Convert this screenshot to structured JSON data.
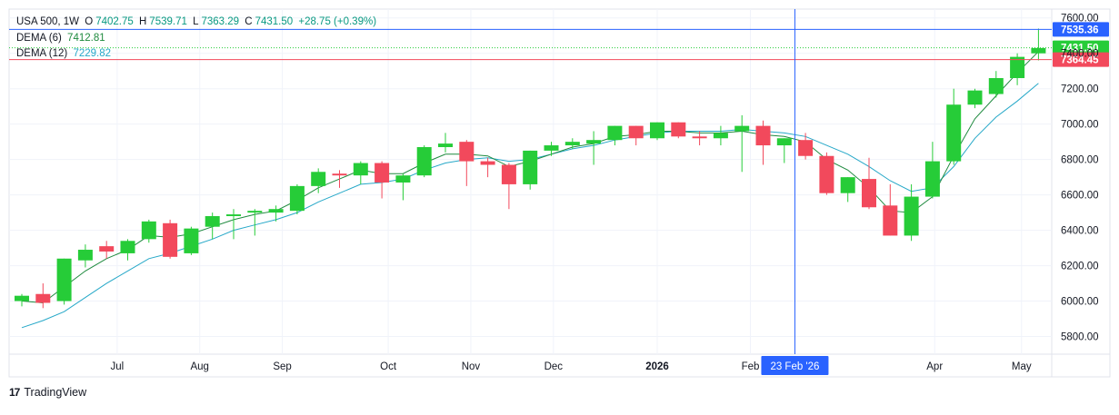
{
  "header": {
    "symbol": "USA 500, 1W",
    "o_label": "O",
    "o_value": "7402.75",
    "h_label": "H",
    "h_value": "7539.71",
    "l_label": "L",
    "l_value": "7363.29",
    "c_label": "C",
    "c_value": "7431.50",
    "change": "+28.75 (+0.39%)"
  },
  "indicators": [
    {
      "label": "DEMA (6)",
      "value": "7412.81",
      "color": "#1e8a3e"
    },
    {
      "label": "DEMA (12)",
      "value": "7229.82",
      "color": "#26a8c8"
    }
  ],
  "footer": {
    "logo_icon": "tradingview-logo-icon",
    "brand": "TradingView"
  },
  "colors": {
    "up": "#26cc38",
    "down": "#f2495c",
    "crosshair": "#2962ff",
    "grid": "#f0f3fa"
  },
  "chart_data": {
    "type": "candlestick",
    "ylim": [
      5700,
      7650
    ],
    "y_ticks": [
      5800,
      6000,
      6200,
      6400,
      6600,
      6800,
      7000,
      7200,
      7400,
      7600
    ],
    "y_tick_labels": [
      "5800.00",
      "6000.00",
      "6200.00",
      "6400.00",
      "6600.00",
      "6800.00",
      "7000.00",
      "7200.00",
      "7400.00",
      "7600.00"
    ],
    "x_labels": [
      {
        "text": "Jul",
        "index": 4.5
      },
      {
        "text": "Aug",
        "index": 8.4
      },
      {
        "text": "Sep",
        "index": 12.3
      },
      {
        "text": "Oct",
        "index": 17.3
      },
      {
        "text": "Nov",
        "index": 21.2
      },
      {
        "text": "Dec",
        "index": 25.1
      },
      {
        "text": "2026",
        "index": 30.0,
        "bold": true
      },
      {
        "text": "Feb",
        "index": 34.4
      },
      {
        "text": "Apr",
        "index": 43.1
      },
      {
        "text": "May",
        "index": 47.2
      }
    ],
    "candles": [
      [
        6000,
        6040,
        5970,
        6030
      ],
      [
        6040,
        6100,
        5960,
        5990
      ],
      [
        6000,
        6240,
        5980,
        6240
      ],
      [
        6230,
        6320,
        6190,
        6290
      ],
      [
        6310,
        6340,
        6240,
        6280
      ],
      [
        6270,
        6350,
        6230,
        6340
      ],
      [
        6350,
        6460,
        6330,
        6450
      ],
      [
        6440,
        6460,
        6240,
        6250
      ],
      [
        6270,
        6420,
        6260,
        6410
      ],
      [
        6420,
        6500,
        6350,
        6480
      ],
      [
        6480,
        6520,
        6350,
        6490
      ],
      [
        6500,
        6520,
        6370,
        6510
      ],
      [
        6500,
        6540,
        6450,
        6520
      ],
      [
        6510,
        6660,
        6490,
        6650
      ],
      [
        6650,
        6750,
        6610,
        6730
      ],
      [
        6720,
        6740,
        6640,
        6710
      ],
      [
        6710,
        6790,
        6660,
        6780
      ],
      [
        6780,
        6790,
        6580,
        6670
      ],
      [
        6670,
        6720,
        6570,
        6710
      ],
      [
        6710,
        6880,
        6700,
        6870
      ],
      [
        6870,
        6950,
        6840,
        6890
      ],
      [
        6900,
        6910,
        6650,
        6790
      ],
      [
        6790,
        6810,
        6700,
        6770
      ],
      [
        6770,
        6780,
        6520,
        6660
      ],
      [
        6660,
        6850,
        6630,
        6850
      ],
      [
        6850,
        6900,
        6820,
        6880
      ],
      [
        6880,
        6920,
        6860,
        6900
      ],
      [
        6890,
        6960,
        6770,
        6910
      ],
      [
        6910,
        6990,
        6880,
        6990
      ],
      [
        6990,
        6990,
        6880,
        6920
      ],
      [
        6920,
        7010,
        6910,
        7010
      ],
      [
        7010,
        7010,
        6920,
        6930
      ],
      [
        6930,
        6960,
        6880,
        6920
      ],
      [
        6920,
        6990,
        6880,
        6950
      ],
      [
        6960,
        7050,
        6730,
        6990
      ],
      [
        6990,
        7020,
        6770,
        6880
      ],
      [
        6880,
        6920,
        6780,
        6920
      ],
      [
        6910,
        6950,
        6800,
        6820
      ],
      [
        6820,
        6840,
        6600,
        6610
      ],
      [
        6610,
        6700,
        6560,
        6700
      ],
      [
        6690,
        6810,
        6520,
        6530
      ],
      [
        6540,
        6660,
        6370,
        6370
      ],
      [
        6370,
        6660,
        6340,
        6590
      ],
      [
        6590,
        6900,
        6580,
        6790
      ],
      [
        6790,
        7200,
        6770,
        7110
      ],
      [
        7110,
        7200,
        7090,
        7190
      ],
      [
        7170,
        7300,
        7150,
        7260
      ],
      [
        7260,
        7400,
        7220,
        7380
      ],
      [
        7400,
        7540,
        7360,
        7430
      ]
    ],
    "dema6": [
      6000,
      5990,
      6080,
      6170,
      6240,
      6290,
      6370,
      6360,
      6380,
      6420,
      6460,
      6490,
      6510,
      6570,
      6640,
      6690,
      6740,
      6720,
      6720,
      6780,
      6830,
      6830,
      6820,
      6760,
      6790,
      6830,
      6870,
      6890,
      6930,
      6940,
      6960,
      6960,
      6950,
      6950,
      6960,
      6940,
      6930,
      6900,
      6800,
      6740,
      6640,
      6510,
      6500,
      6590,
      6820,
      7030,
      7160,
      7290,
      7410
    ],
    "dema12": [
      5850,
      5890,
      5940,
      6020,
      6100,
      6170,
      6240,
      6270,
      6310,
      6350,
      6400,
      6430,
      6460,
      6500,
      6560,
      6610,
      6660,
      6670,
      6690,
      6740,
      6780,
      6800,
      6810,
      6790,
      6800,
      6830,
      6860,
      6880,
      6910,
      6930,
      6950,
      6960,
      6960,
      6960,
      6970,
      6960,
      6950,
      6930,
      6880,
      6830,
      6760,
      6680,
      6620,
      6640,
      6760,
      6920,
      7040,
      7130,
      7230
    ],
    "price_lines": [
      {
        "value": 7535.36,
        "label": "7535.36",
        "color": "#2962ff"
      },
      {
        "value": 7431.5,
        "label": "7431.50",
        "color": "#26cc38"
      },
      {
        "value": 7364.45,
        "label": "7364.45",
        "color": "#f2495c"
      }
    ],
    "crosshair": {
      "index": 36.5,
      "x_label": "23 Feb '26"
    }
  }
}
